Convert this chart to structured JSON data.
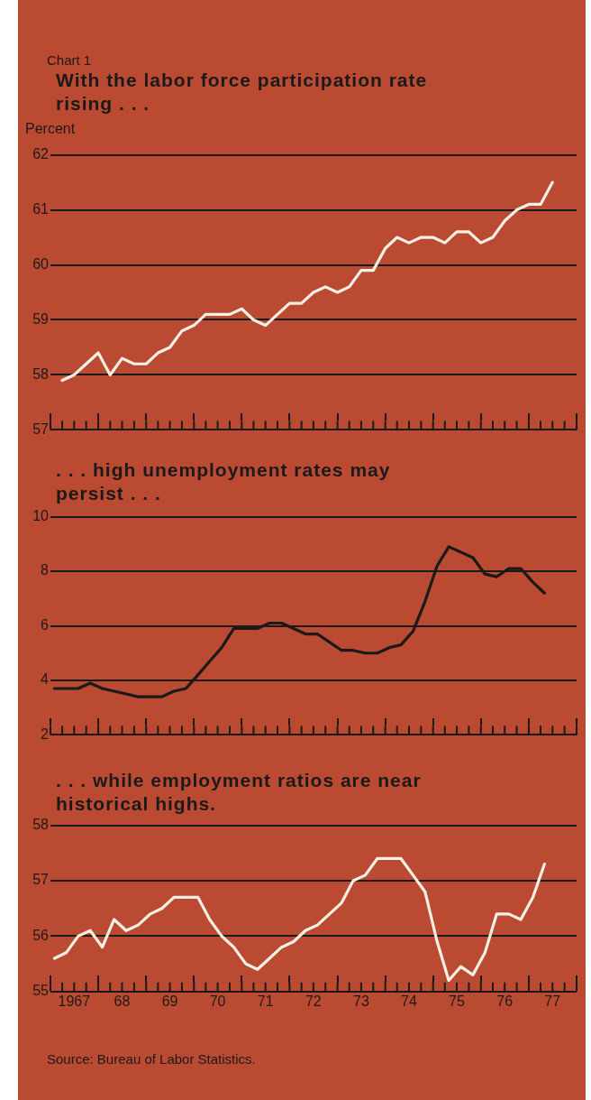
{
  "chart_data": [
    {
      "type": "line",
      "title": "With the labor force participation rate rising . . .",
      "ylabel": "Percent",
      "annotations": [
        "Chart 1"
      ],
      "tick_labels": "y",
      "x": [
        "1967-04",
        "1967-07",
        "1967-10",
        "1968-01",
        "1968-04",
        "1968-07",
        "1968-10",
        "1969-01",
        "1969-04",
        "1969-07",
        "1969-10",
        "1970-01",
        "1970-04",
        "1970-07",
        "1970-10",
        "1971-01",
        "1971-04",
        "1971-07",
        "1971-10",
        "1972-01",
        "1972-04",
        "1972-07",
        "1972-10",
        "1973-01",
        "1973-04",
        "1973-07",
        "1973-10",
        "1974-01",
        "1974-04",
        "1974-07",
        "1974-10",
        "1975-01",
        "1975-04",
        "1975-07",
        "1975-10",
        "1976-01",
        "1976-04",
        "1976-07",
        "1976-10",
        "1977-01",
        "1977-04",
        "1977-07"
      ],
      "series": [
        {
          "color": "#f6efe4",
          "values": [
            57.9,
            58.0,
            58.2,
            58.4,
            58.0,
            58.3,
            58.2,
            58.2,
            58.4,
            58.5,
            58.8,
            58.9,
            59.1,
            59.1,
            59.1,
            59.2,
            59.0,
            58.9,
            59.1,
            59.3,
            59.3,
            59.5,
            59.6,
            59.5,
            59.6,
            59.9,
            59.9,
            60.3,
            60.5,
            60.4,
            60.5,
            60.5,
            60.4,
            60.6,
            60.6,
            60.4,
            60.5,
            60.8,
            61.0,
            61.1,
            61.1,
            61.5
          ]
        }
      ],
      "xlim": [
        "1967",
        "1978"
      ],
      "xticks": [
        {
          "value": "1967",
          "label": null
        },
        {
          "value": "1967-04",
          "label": null
        },
        {
          "value": "1967-07",
          "label": null
        },
        {
          "value": "1967-10",
          "label": null
        },
        {
          "value": "1968",
          "label": null
        },
        {
          "value": "1968-04",
          "label": null
        },
        {
          "value": "1968-07",
          "label": null
        },
        {
          "value": "1968-10",
          "label": null
        },
        {
          "value": "1969",
          "label": null
        },
        {
          "value": "1969-04",
          "label": null
        },
        {
          "value": "1969-07",
          "label": null
        },
        {
          "value": "1969-10",
          "label": null
        },
        {
          "value": "1970",
          "label": null
        },
        {
          "value": "1970-04",
          "label": null
        },
        {
          "value": "1970-07",
          "label": null
        },
        {
          "value": "1970-10",
          "label": null
        },
        {
          "value": "1971",
          "label": null
        },
        {
          "value": "1971-04",
          "label": null
        },
        {
          "value": "1971-07",
          "label": null
        },
        {
          "value": "1971-10",
          "label": null
        },
        {
          "value": "1972",
          "label": null
        },
        {
          "value": "1972-04",
          "label": null
        },
        {
          "value": "1972-07",
          "label": null
        },
        {
          "value": "1972-10",
          "label": null
        },
        {
          "value": "1973",
          "label": null
        },
        {
          "value": "1973-04",
          "label": null
        },
        {
          "value": "1973-07",
          "label": null
        },
        {
          "value": "1973-10",
          "label": null
        },
        {
          "value": "1974",
          "label": null
        },
        {
          "value": "1974-04",
          "label": null
        },
        {
          "value": "1974-07",
          "label": null
        },
        {
          "value": "1974-10",
          "label": null
        },
        {
          "value": "1975",
          "label": null
        },
        {
          "value": "1975-04",
          "label": null
        },
        {
          "value": "1975-07",
          "label": null
        },
        {
          "value": "1975-10",
          "label": null
        },
        {
          "value": "1976",
          "label": null
        },
        {
          "value": "1976-04",
          "label": null
        },
        {
          "value": "1976-07",
          "label": null
        },
        {
          "value": "1976-10",
          "label": null
        },
        {
          "value": "1977",
          "label": null
        },
        {
          "value": "1977-04",
          "label": null
        },
        {
          "value": "1977-07",
          "label": null
        },
        {
          "value": "1977-10",
          "label": null
        },
        {
          "value": "1978",
          "label": null
        }
      ],
      "ylim": [
        57,
        62
      ],
      "yticks": [
        57,
        58,
        59,
        60,
        61,
        62
      ],
      "grid": "y"
    },
    {
      "type": "line",
      "title": ". . . high unemployment rates may persist . . .",
      "tick_labels": "y",
      "x": [
        "1967-02",
        "1967-05",
        "1967-08",
        "1967-11",
        "1968-02",
        "1968-05",
        "1968-08",
        "1968-11",
        "1969-02",
        "1969-05",
        "1969-08",
        "1969-11",
        "1970-02",
        "1970-05",
        "1970-08",
        "1970-11",
        "1971-02",
        "1971-05",
        "1971-08",
        "1971-11",
        "1972-02",
        "1972-05",
        "1972-08",
        "1972-11",
        "1973-02",
        "1973-05",
        "1973-08",
        "1973-11",
        "1974-02",
        "1974-05",
        "1974-08",
        "1974-11",
        "1975-02",
        "1975-05",
        "1975-08",
        "1975-11",
        "1976-02",
        "1976-05",
        "1976-08",
        "1976-11",
        "1977-02",
        "1977-05"
      ],
      "series": [
        {
          "color": "#1c1a18",
          "values": [
            3.7,
            3.7,
            3.7,
            3.9,
            3.7,
            3.6,
            3.5,
            3.4,
            3.4,
            3.4,
            3.6,
            3.7,
            4.2,
            4.7,
            5.2,
            5.9,
            5.9,
            5.9,
            6.1,
            6.1,
            5.9,
            5.7,
            5.7,
            5.4,
            5.1,
            5.1,
            5.0,
            5.0,
            5.2,
            5.3,
            5.8,
            6.9,
            8.2,
            8.9,
            8.7,
            8.5,
            7.9,
            7.8,
            8.1,
            8.1,
            7.6,
            7.2
          ]
        }
      ],
      "xlim": [
        "1967",
        "1978"
      ],
      "xticks": [
        {
          "value": "1967",
          "label": null
        },
        {
          "value": "1967-04",
          "label": null
        },
        {
          "value": "1967-07",
          "label": null
        },
        {
          "value": "1967-10",
          "label": null
        },
        {
          "value": "1968",
          "label": null
        },
        {
          "value": "1968-04",
          "label": null
        },
        {
          "value": "1968-07",
          "label": null
        },
        {
          "value": "1968-10",
          "label": null
        },
        {
          "value": "1969",
          "label": null
        },
        {
          "value": "1969-04",
          "label": null
        },
        {
          "value": "1969-07",
          "label": null
        },
        {
          "value": "1969-10",
          "label": null
        },
        {
          "value": "1970",
          "label": null
        },
        {
          "value": "1970-04",
          "label": null
        },
        {
          "value": "1970-07",
          "label": null
        },
        {
          "value": "1970-10",
          "label": null
        },
        {
          "value": "1971",
          "label": null
        },
        {
          "value": "1971-04",
          "label": null
        },
        {
          "value": "1971-07",
          "label": null
        },
        {
          "value": "1971-10",
          "label": null
        },
        {
          "value": "1972",
          "label": null
        },
        {
          "value": "1972-04",
          "label": null
        },
        {
          "value": "1972-07",
          "label": null
        },
        {
          "value": "1972-10",
          "label": null
        },
        {
          "value": "1973",
          "label": null
        },
        {
          "value": "1973-04",
          "label": null
        },
        {
          "value": "1973-07",
          "label": null
        },
        {
          "value": "1973-10",
          "label": null
        },
        {
          "value": "1974",
          "label": null
        },
        {
          "value": "1974-04",
          "label": null
        },
        {
          "value": "1974-07",
          "label": null
        },
        {
          "value": "1974-10",
          "label": null
        },
        {
          "value": "1975",
          "label": null
        },
        {
          "value": "1975-04",
          "label": null
        },
        {
          "value": "1975-07",
          "label": null
        },
        {
          "value": "1975-10",
          "label": null
        },
        {
          "value": "1976",
          "label": null
        },
        {
          "value": "1976-04",
          "label": null
        },
        {
          "value": "1976-07",
          "label": null
        },
        {
          "value": "1976-10",
          "label": null
        },
        {
          "value": "1977",
          "label": null
        },
        {
          "value": "1977-04",
          "label": null
        },
        {
          "value": "1977-07",
          "label": null
        },
        {
          "value": "1977-10",
          "label": null
        },
        {
          "value": "1978",
          "label": null
        }
      ],
      "ylim": [
        2,
        10
      ],
      "yticks": [
        2,
        4,
        6,
        8,
        10
      ],
      "grid": "y"
    },
    {
      "type": "line",
      "title": ". . . while employment ratios are near historical highs.",
      "annotations": [
        "Source:  Bureau of Labor Statistics."
      ],
      "x": [
        "1967-02",
        "1967-05",
        "1967-08",
        "1967-11",
        "1968-02",
        "1968-05",
        "1968-08",
        "1968-11",
        "1969-02",
        "1969-05",
        "1969-08",
        "1969-11",
        "1970-02",
        "1970-05",
        "1970-08",
        "1970-11",
        "1971-02",
        "1971-05",
        "1971-08",
        "1971-11",
        "1972-02",
        "1972-05",
        "1972-08",
        "1972-11",
        "1973-02",
        "1973-05",
        "1973-08",
        "1973-11",
        "1974-02",
        "1974-05",
        "1974-08",
        "1974-11",
        "1975-02",
        "1975-05",
        "1975-08",
        "1975-11",
        "1976-02",
        "1976-05",
        "1976-08",
        "1976-11",
        "1977-02",
        "1977-05"
      ],
      "series": [
        {
          "color": "#f6efe4",
          "values": [
            55.6,
            55.7,
            56.0,
            56.1,
            55.8,
            56.3,
            56.1,
            56.2,
            56.4,
            56.5,
            56.7,
            56.7,
            56.7,
            56.3,
            56.0,
            55.8,
            55.5,
            55.4,
            55.6,
            55.8,
            55.9,
            56.1,
            56.2,
            56.4,
            56.6,
            57.0,
            57.1,
            57.4,
            57.4,
            57.4,
            57.1,
            56.8,
            55.9,
            55.2,
            55.45,
            55.3,
            55.7,
            56.4,
            56.4,
            56.3,
            56.7,
            57.3
          ]
        }
      ],
      "xlim": [
        "1967",
        "1978"
      ],
      "xticks": [
        {
          "value": "1967",
          "label": null
        },
        {
          "value": "1967-04",
          "label": null
        },
        {
          "value": "1967-07",
          "label": "1967"
        },
        {
          "value": "1967-10",
          "label": null
        },
        {
          "value": "1968",
          "label": null
        },
        {
          "value": "1968-04",
          "label": null
        },
        {
          "value": "1968-07",
          "label": "68"
        },
        {
          "value": "1968-10",
          "label": null
        },
        {
          "value": "1969",
          "label": null
        },
        {
          "value": "1969-04",
          "label": null
        },
        {
          "value": "1969-07",
          "label": "69"
        },
        {
          "value": "1969-10",
          "label": null
        },
        {
          "value": "1970",
          "label": null
        },
        {
          "value": "1970-04",
          "label": null
        },
        {
          "value": "1970-07",
          "label": "70"
        },
        {
          "value": "1970-10",
          "label": null
        },
        {
          "value": "1971",
          "label": null
        },
        {
          "value": "1971-04",
          "label": null
        },
        {
          "value": "1971-07",
          "label": "71"
        },
        {
          "value": "1971-10",
          "label": null
        },
        {
          "value": "1972",
          "label": null
        },
        {
          "value": "1972-04",
          "label": null
        },
        {
          "value": "1972-07",
          "label": "72"
        },
        {
          "value": "1972-10",
          "label": null
        },
        {
          "value": "1973",
          "label": null
        },
        {
          "value": "1973-04",
          "label": null
        },
        {
          "value": "1973-07",
          "label": "73"
        },
        {
          "value": "1973-10",
          "label": null
        },
        {
          "value": "1974",
          "label": null
        },
        {
          "value": "1974-04",
          "label": null
        },
        {
          "value": "1974-07",
          "label": "74"
        },
        {
          "value": "1974-10",
          "label": null
        },
        {
          "value": "1975",
          "label": null
        },
        {
          "value": "1975-04",
          "label": null
        },
        {
          "value": "1975-07",
          "label": "75"
        },
        {
          "value": "1975-10",
          "label": null
        },
        {
          "value": "1976",
          "label": null
        },
        {
          "value": "1976-04",
          "label": null
        },
        {
          "value": "1976-07",
          "label": "76"
        },
        {
          "value": "1976-10",
          "label": null
        },
        {
          "value": "1977",
          "label": null
        },
        {
          "value": "1977-04",
          "label": null
        },
        {
          "value": "1977-07",
          "label": "77"
        },
        {
          "value": "1977-10",
          "label": null
        },
        {
          "value": "1978",
          "label": null
        }
      ],
      "ylim": [
        55,
        58
      ],
      "yticks": [
        55,
        56,
        57,
        58
      ],
      "grid": "y"
    }
  ]
}
